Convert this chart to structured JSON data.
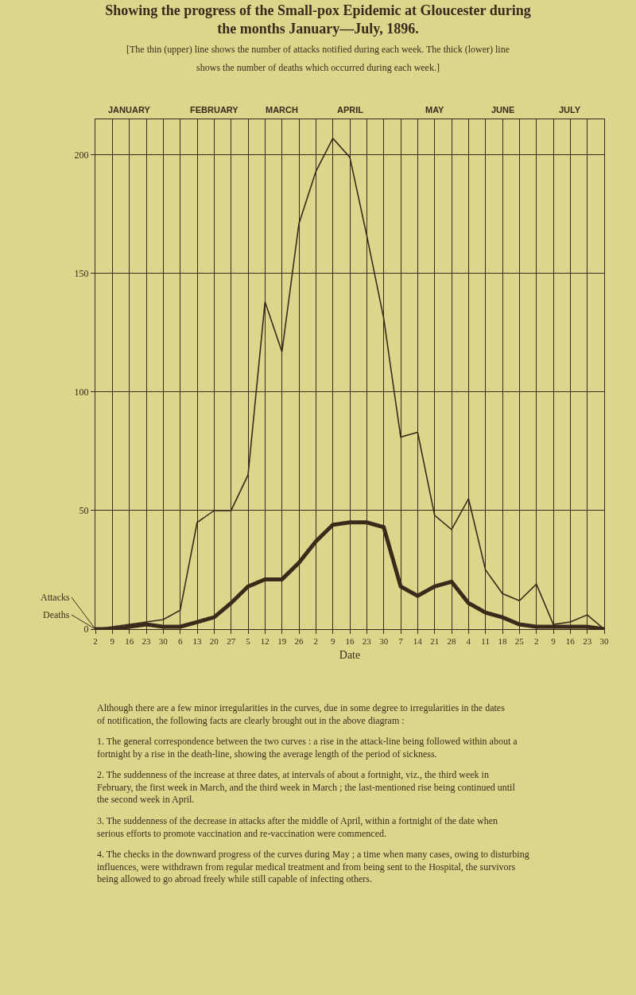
{
  "chart_data": {
    "type": "line",
    "title": "Showing the progress of the Small-pox Epidemic at Gloucester during the months January—July, 1896.",
    "subtitle": "[The thin (upper) line shows the number of attacks notified during each week. The thick (lower) line shows the number of deaths which occurred during each week.]",
    "xlabel": "Date",
    "x": [
      "1896-01-02",
      "1896-01-09",
      "1896-01-16",
      "1896-01-23",
      "1896-01-30",
      "1896-02-06",
      "1896-02-13",
      "1896-02-20",
      "1896-02-27",
      "1896-03-05",
      "1896-03-12",
      "1896-03-19",
      "1896-03-26",
      "1896-04-02",
      "1896-04-09",
      "1896-04-16",
      "1896-04-23",
      "1896-04-30",
      "1896-05-07",
      "1896-05-14",
      "1896-05-21",
      "1896-05-28",
      "1896-06-04",
      "1896-06-11",
      "1896-06-18",
      "1896-06-25",
      "1896-07-02",
      "1896-07-09",
      "1896-07-16",
      "1896-07-23",
      "1896-07-30"
    ],
    "xlim": [
      "1896-01-02",
      "1896-07-30"
    ],
    "xticks": [
      {
        "value": "1896-01-02",
        "label": "2"
      },
      {
        "value": "1896-01-09",
        "label": "9"
      },
      {
        "value": "1896-01-16",
        "label": "16"
      },
      {
        "value": "1896-01-23",
        "label": "23"
      },
      {
        "value": "1896-01-30",
        "label": "30"
      },
      {
        "value": "1896-02-06",
        "label": "6"
      },
      {
        "value": "1896-02-13",
        "label": "13"
      },
      {
        "value": "1896-02-20",
        "label": "20"
      },
      {
        "value": "1896-02-27",
        "label": "27"
      },
      {
        "value": "1896-03-05",
        "label": "5"
      },
      {
        "value": "1896-03-12",
        "label": "12"
      },
      {
        "value": "1896-03-19",
        "label": "19"
      },
      {
        "value": "1896-03-26",
        "label": "26"
      },
      {
        "value": "1896-04-02",
        "label": "2"
      },
      {
        "value": "1896-04-09",
        "label": "9"
      },
      {
        "value": "1896-04-16",
        "label": "16"
      },
      {
        "value": "1896-04-23",
        "label": "23"
      },
      {
        "value": "1896-04-30",
        "label": "30"
      },
      {
        "value": "1896-05-07",
        "label": "7"
      },
      {
        "value": "1896-05-14",
        "label": "14"
      },
      {
        "value": "1896-05-21",
        "label": "21"
      },
      {
        "value": "1896-05-28",
        "label": "28"
      },
      {
        "value": "1896-06-04",
        "label": "4"
      },
      {
        "value": "1896-06-11",
        "label": "11"
      },
      {
        "value": "1896-06-18",
        "label": "18"
      },
      {
        "value": "1896-06-25",
        "label": "25"
      },
      {
        "value": "1896-07-02",
        "label": "2"
      },
      {
        "value": "1896-07-09",
        "label": "9"
      },
      {
        "value": "1896-07-16",
        "label": "16"
      },
      {
        "value": "1896-07-23",
        "label": "23"
      },
      {
        "value": "1896-07-30",
        "label": "30"
      }
    ],
    "ylim": [
      0,
      215
    ],
    "yticks": [
      0,
      50,
      100,
      150,
      200
    ],
    "grid": true,
    "legend": false,
    "marker": "none",
    "line_style": "solid",
    "series": [
      {
        "name": "Attacks",
        "color": "#3b2a1c",
        "values": [
          0,
          1,
          2,
          3,
          4,
          8,
          45,
          50,
          50,
          65,
          138,
          117,
          171,
          193,
          207,
          199,
          166,
          131,
          81,
          83,
          48,
          42,
          55,
          25,
          15,
          12,
          19,
          2,
          3,
          6,
          0
        ]
      },
      {
        "name": "Deaths",
        "color": "#3b2a1c",
        "values": [
          0,
          0,
          1,
          2,
          1,
          1,
          3,
          5,
          11,
          18,
          21,
          21,
          28,
          37,
          44,
          45,
          45,
          43,
          18,
          14,
          18,
          20,
          11,
          7,
          5,
          2,
          1,
          1,
          1,
          1,
          0
        ]
      }
    ],
    "annotations": [
      "JANUARY",
      "FEBRUARY",
      "MARCH",
      "APRIL",
      "MAY",
      "JUNE",
      "JULY",
      "Although there are a few minor irregularities in the curves, due in some degree to irregularities in the dates of notification, the following facts are clearly brought out in the above diagram :",
      "1. The general correspondence between the two curves : a rise in the attack-line being followed within about a fortnight by a rise in the death-line, showing the average length of the period of sickness.",
      "2. The suddenness of the increase at three dates, at intervals of about a fortnight, viz., the third week in February, the first week in March, and the third week in March ; the last-mentioned rise being continued until the second week in April.",
      "3. The suddenness of the decrease in attacks after the middle of April, within a fortnight of the date when serious efforts to promote vaccination and re-vaccination were commenced.",
      "4. The checks in the downward progress of the curves during May ; a time when many cases, owing to disturbing influences, were withdrawn from regular medical treatment and from being sent to the Hospital, the survivors being allowed to go abroad freely while still capable of infecting others."
    ]
  }
}
